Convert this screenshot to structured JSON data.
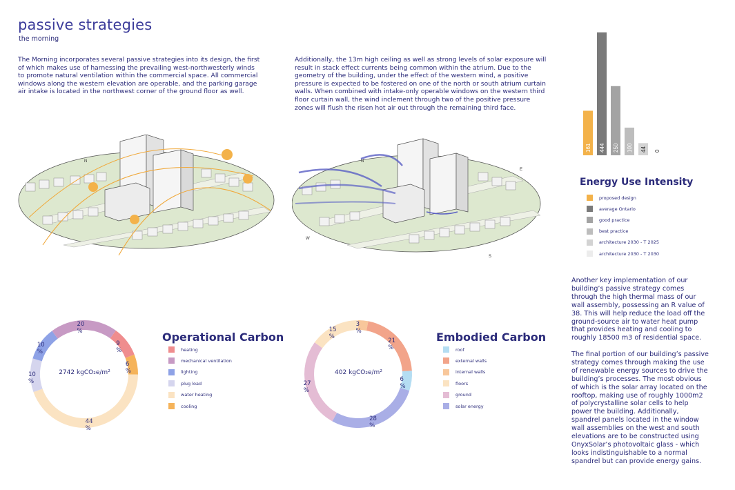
{
  "header": {
    "title": "passive strategies",
    "subtitle": "the morning"
  },
  "paragraphs": {
    "p1": "The Morning incorporates several passive strategies into its design, the first of which makes use of harnessing the prevailing west-northwesterly winds to promote natural ventilation within the commercial space. All commercial windows along the western elevation are operable, and the parking garage air intake is located in the northwest corner of the ground floor as well.",
    "p2": "Additionally, the 13m high ceiling as well as strong levels of solar exposure will result in stack effect currents being common within the atrium. Due to the geometry of the building, under the effect of the western wind, a positive pressure is expected to be fostered on one of the north or south atrium curtain walls. When combined with intake-only operable windows on the western third floor curtain wall, the wind inclement through two of the positive pressure zones will flush the risen hot air out through the remaining third face.",
    "p3": "Another key implementation of our building’s passive strategy comes through the high thermal mass of our wall assembly, possessing an R value of 38. This will help reduce the load off the ground-source air to water heat pump that provides heating and cooling to roughly 18500 m3 of residential space.",
    "p4": "The final portion of our building’s passive strategy comes through making the use of renewable energy sources to drive the building’s processes. The most obvious of which is the solar array located on the rooftop, making use of roughly 1000m2 of polycrystalline solar cells to help power the building. Additionally, spandrel panels located in the window wall assemblies on the west and south elevations are to be constructed using OnyxSolar’s photovoltaic glass - which looks indistinguishable to a normal spandrel but can provide energy gains."
  },
  "diagram_labels": {
    "north": "N",
    "west": "W",
    "south": "S",
    "east": "E"
  },
  "energy": {
    "title": "Energy Use Intensity",
    "legend": [
      {
        "label": "proposed design",
        "color": "#f3b24a"
      },
      {
        "label": "average Ontario",
        "color": "#7a7a7a"
      },
      {
        "label": "good practice",
        "color": "#a3a3a3"
      },
      {
        "label": "best practice",
        "color": "#bdbdbd"
      },
      {
        "label": "architecture 2030 - T 2025",
        "color": "#d3d3d3"
      },
      {
        "label": "architecture 2030 - T 2030",
        "color": "#ececec"
      }
    ]
  },
  "operational": {
    "title": "Operational Carbon",
    "center": "2742 kgCO₂e/m²",
    "legend": [
      {
        "label": "heating",
        "color": "#ef8d8e"
      },
      {
        "label": "mechanical ventilation",
        "color": "#c79ac4"
      },
      {
        "label": "lighting",
        "color": "#8ea2e6"
      },
      {
        "label": "plug load",
        "color": "#d5d5ee"
      },
      {
        "label": "water heating",
        "color": "#fbe3c2"
      },
      {
        "label": "cooling",
        "color": "#f5b35a"
      }
    ]
  },
  "embodied": {
    "title": "Embodied Carbon",
    "center": "402 kgCO₂e/m²",
    "legend": [
      {
        "label": "roof",
        "color": "#b4ddf2"
      },
      {
        "label": "external walls",
        "color": "#f2a48a"
      },
      {
        "label": "internal walls",
        "color": "#f8c79b"
      },
      {
        "label": "floors",
        "color": "#fbe3c2"
      },
      {
        "label": "ground",
        "color": "#e4bcd4"
      },
      {
        "label": "solar energy",
        "color": "#a9aee6"
      }
    ]
  },
  "chart_data": [
    {
      "type": "bar",
      "title": "Energy Use Intensity",
      "categories": [
        "proposed design",
        "average Ontario",
        "good practice",
        "best practice",
        "architecture 2030 - T 2025",
        "architecture 2030 - T 2030"
      ],
      "values": [
        161,
        444,
        250,
        100,
        44,
        0
      ],
      "value_labels": [
        "161",
        "444",
        "250",
        "100",
        "44",
        "0"
      ],
      "colors": [
        "#f3b24a",
        "#7a7a7a",
        "#a3a3a3",
        "#bdbdbd",
        "#d3d3d3",
        "#ececec"
      ],
      "ylim": [
        0,
        444
      ]
    },
    {
      "type": "pie",
      "title": "Operational Carbon",
      "center_label": "2742 kgCO2e/m2",
      "slices": [
        {
          "name": "heating",
          "value": 9,
          "label": "9 %",
          "color": "#ef8d8e"
        },
        {
          "name": "cooling",
          "value": 6,
          "label": "6 %",
          "color": "#f5b35a"
        },
        {
          "name": "water heating",
          "value": 44,
          "label": "44 %",
          "color": "#fbe3c2"
        },
        {
          "name": "plug load",
          "value": 10,
          "label": "10 %",
          "color": "#d5d5ee"
        },
        {
          "name": "lighting",
          "value": 10,
          "label": "10 %",
          "color": "#8ea2e6"
        },
        {
          "name": "mechanical ventilation",
          "value": 20,
          "label": "20 %",
          "color": "#c79ac4"
        }
      ]
    },
    {
      "type": "pie",
      "title": "Embodied Carbon",
      "center_label": "402 kgCO2e/m2",
      "slices": [
        {
          "name": "internal walls",
          "value": 3,
          "label": "3 %",
          "color": "#f8c79b"
        },
        {
          "name": "external walls",
          "value": 21,
          "label": "21 %",
          "color": "#f2a48a"
        },
        {
          "name": "roof",
          "value": 6,
          "label": "6 %",
          "color": "#b4ddf2"
        },
        {
          "name": "solar energy",
          "value": 28,
          "label": "28 %",
          "color": "#a9aee6"
        },
        {
          "name": "ground",
          "value": 27,
          "label": "27 %",
          "color": "#e4bcd4"
        },
        {
          "name": "floors",
          "value": 15,
          "label": "15 %",
          "color": "#fbe3c2"
        }
      ]
    }
  ]
}
